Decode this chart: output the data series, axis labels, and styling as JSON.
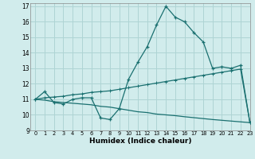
{
  "title": "",
  "xlabel": "Humidex (Indice chaleur)",
  "ylabel": "",
  "xlim": [
    -0.5,
    23
  ],
  "ylim": [
    9,
    17.2
  ],
  "xticks": [
    0,
    1,
    2,
    3,
    4,
    5,
    6,
    7,
    8,
    9,
    10,
    11,
    12,
    13,
    14,
    15,
    16,
    17,
    18,
    19,
    20,
    21,
    22,
    23
  ],
  "yticks": [
    9,
    10,
    11,
    12,
    13,
    14,
    15,
    16,
    17
  ],
  "bg_color": "#d1ecec",
  "grid_color": "#aed4d4",
  "line_color": "#1a7070",
  "line1_x": [
    0,
    1,
    2,
    3,
    4,
    5,
    6,
    7,
    8,
    9,
    10,
    11,
    12,
    13,
    14,
    15,
    16,
    17,
    18,
    19,
    20,
    21,
    22,
    23
  ],
  "line1_y": [
    11.0,
    11.5,
    10.8,
    10.7,
    11.0,
    11.1,
    11.1,
    9.8,
    9.7,
    10.4,
    12.3,
    13.4,
    14.4,
    15.8,
    17.0,
    16.3,
    16.0,
    15.3,
    14.7,
    13.0,
    13.1,
    13.0,
    13.2,
    9.5
  ],
  "line2_x": [
    0,
    1,
    2,
    3,
    4,
    5,
    6,
    7,
    8,
    9,
    10,
    11,
    12,
    13,
    14,
    15,
    16,
    17,
    18,
    19,
    20,
    21,
    22,
    23
  ],
  "line2_y": [
    11.0,
    11.1,
    11.15,
    11.2,
    11.3,
    11.35,
    11.45,
    11.5,
    11.55,
    11.65,
    11.75,
    11.85,
    11.95,
    12.05,
    12.15,
    12.25,
    12.35,
    12.45,
    12.55,
    12.65,
    12.75,
    12.85,
    12.95,
    9.5
  ],
  "line3_x": [
    0,
    1,
    2,
    3,
    4,
    5,
    6,
    7,
    8,
    9,
    10,
    11,
    12,
    13,
    14,
    15,
    16,
    17,
    18,
    19,
    20,
    21,
    22,
    23
  ],
  "line3_y": [
    11.0,
    10.95,
    10.85,
    10.8,
    10.75,
    10.7,
    10.65,
    10.55,
    10.5,
    10.4,
    10.3,
    10.2,
    10.15,
    10.05,
    10.0,
    9.95,
    9.88,
    9.82,
    9.76,
    9.7,
    9.65,
    9.6,
    9.55,
    9.5
  ]
}
